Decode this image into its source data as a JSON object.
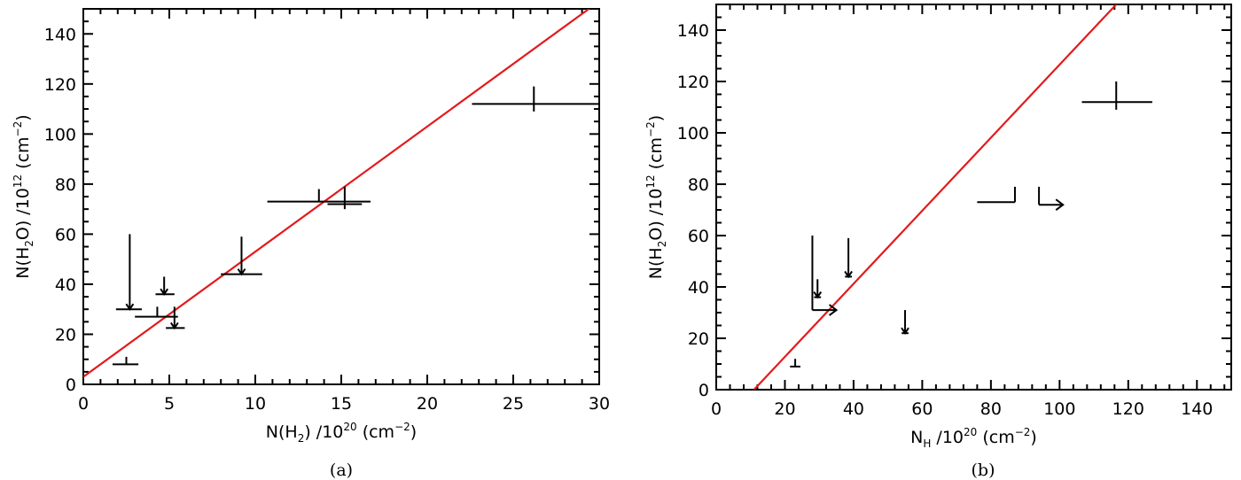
{
  "chart_data": [
    {
      "type": "scatter",
      "panel_label": "(a)",
      "xlabel": {
        "pre": "N(H",
        "sub": "2",
        "post": ") /10",
        "sup": "20",
        "unit_pre": " (cm",
        "unit_sup": "−2",
        "unit_post": ")"
      },
      "ylabel": {
        "pre": "N(H",
        "sub": "2",
        "post": "O) /10",
        "sup": "12",
        "unit_pre": " (cm",
        "unit_sup": "−2",
        "unit_post": ")"
      },
      "xlim": [
        0,
        30
      ],
      "ylim": [
        0,
        150
      ],
      "xticks": [
        0,
        5,
        10,
        15,
        20,
        25,
        30
      ],
      "yticks": [
        0,
        20,
        40,
        60,
        80,
        100,
        120,
        140
      ],
      "fit_line": {
        "color": "#e31a1c",
        "x": [
          0,
          29.4
        ],
        "y": [
          3,
          150
        ]
      },
      "points": [
        {
          "x": 2.5,
          "y": 8,
          "xerr": [
            1.7,
            3.2
          ],
          "yerr": [
            8,
            11
          ],
          "upper_limit": false
        },
        {
          "x": 2.7,
          "y": 30,
          "xerr": [
            1.9,
            3.4
          ],
          "yerr": [
            30,
            60
          ],
          "upper_limit": true
        },
        {
          "x": 4.3,
          "y": 27,
          "xerr": [
            3.0,
            5.5
          ],
          "yerr": [
            27,
            31
          ],
          "upper_limit": false
        },
        {
          "x": 4.7,
          "y": 36,
          "xerr": [
            4.2,
            5.3
          ],
          "yerr": [
            36,
            43
          ],
          "upper_limit": true
        },
        {
          "x": 5.3,
          "y": 22.5,
          "xerr": [
            4.8,
            5.9
          ],
          "yerr": [
            22.5,
            31
          ],
          "upper_limit": true
        },
        {
          "x": 9.2,
          "y": 44,
          "xerr": [
            8.0,
            10.4
          ],
          "yerr": [
            44,
            59
          ],
          "upper_limit": true
        },
        {
          "x": 13.7,
          "y": 73,
          "xerr": [
            10.7,
            16.7
          ],
          "yerr": [
            73,
            78
          ],
          "upper_limit": false
        },
        {
          "x": 15.2,
          "y": 72,
          "xerr": [
            14.2,
            16.2
          ],
          "yerr": [
            70,
            79
          ],
          "upper_limit": false
        },
        {
          "x": 26.2,
          "y": 112,
          "xerr": [
            22.6,
            30
          ],
          "yerr": [
            109,
            119
          ],
          "upper_limit": false
        }
      ]
    },
    {
      "type": "scatter",
      "panel_label": "(b)",
      "xlabel": {
        "pre": "N",
        "sub": "H",
        "post": " /10",
        "sup": "20",
        "unit_pre": " (cm",
        "unit_sup": "−2",
        "unit_post": ")"
      },
      "ylabel": {
        "pre": "N(H",
        "sub": "2",
        "post": "O) /10",
        "sup": "12",
        "unit_pre": " (cm",
        "unit_sup": "−2",
        "unit_post": ")"
      },
      "xlim": [
        0,
        150
      ],
      "ylim": [
        0,
        150
      ],
      "xticks": [
        0,
        20,
        40,
        60,
        80,
        100,
        120,
        140
      ],
      "yticks": [
        0,
        20,
        40,
        60,
        80,
        100,
        120,
        140
      ],
      "fit_line": {
        "color": "#e31a1c",
        "x": [
          11,
          116.5
        ],
        "y": [
          0,
          150
        ]
      },
      "points": [
        {
          "x": 23,
          "y": 9,
          "xerr": [
            21.5,
            24.5
          ],
          "yerr": [
            9,
            12
          ],
          "upper_limit": false
        },
        {
          "x": 28,
          "y": 31,
          "xerr": [
            28,
            35
          ],
          "yerr": [
            31,
            60
          ],
          "upper_limit": false,
          "lower_limit_x": true
        },
        {
          "x": 29.5,
          "y": 36,
          "xerr": [
            28.5,
            30.5
          ],
          "yerr": [
            36,
            43
          ],
          "upper_limit": true
        },
        {
          "x": 38.5,
          "y": 44,
          "xerr": [
            37.5,
            39.5
          ],
          "yerr": [
            44,
            59
          ],
          "upper_limit": true
        },
        {
          "x": 55,
          "y": 22,
          "xerr": [
            54,
            56
          ],
          "yerr": [
            22,
            31
          ],
          "upper_limit": true
        },
        {
          "x": 87,
          "y": 73,
          "xerr": [
            76,
            87
          ],
          "yerr": [
            73,
            79
          ],
          "upper_limit": false
        },
        {
          "x": 94,
          "y": 72,
          "xerr": [
            94,
            101
          ],
          "yerr": [
            72,
            79
          ],
          "upper_limit": false,
          "lower_limit_x": true
        },
        {
          "x": 116.5,
          "y": 112,
          "xerr": [
            106.5,
            127
          ],
          "yerr": [
            109,
            120
          ],
          "upper_limit": false
        }
      ]
    }
  ]
}
